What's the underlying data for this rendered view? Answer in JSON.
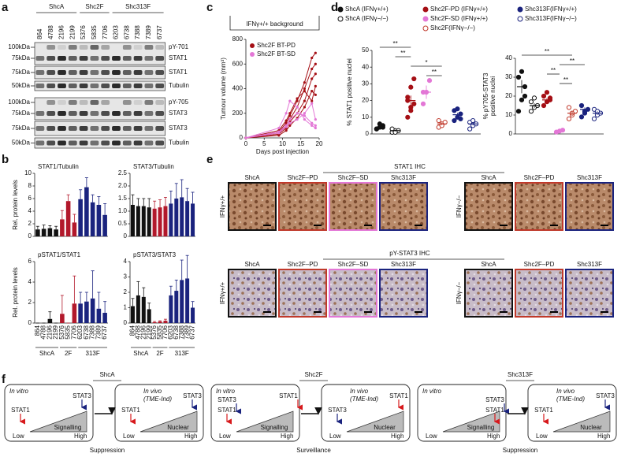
{
  "panel_labels": [
    "a",
    "b",
    "c",
    "d",
    "e",
    "f"
  ],
  "blot": {
    "groups": [
      "ShcA",
      "Shc2F",
      "Shc313F"
    ],
    "lanes": [
      "864",
      "4788",
      "2196",
      "2199",
      "5376",
      "5835",
      "7706",
      "6203",
      "6738",
      "7388",
      "7389",
      "6737"
    ],
    "rows": [
      {
        "markers": [
          "100kDa",
          "75kDa"
        ],
        "labels": [
          "pY-701",
          "STAT1"
        ]
      },
      {
        "markers": [
          "75kDa"
        ],
        "labels": [
          "STAT1"
        ]
      },
      {
        "markers": [
          "50kDa"
        ],
        "labels": [
          "Tubulin"
        ]
      },
      {
        "markers": [
          "100kDa",
          "75kDa"
        ],
        "labels": [
          "pY-705",
          "STAT3"
        ]
      },
      {
        "markers": [
          "75kDa"
        ],
        "labels": [
          "STAT3"
        ]
      },
      {
        "markers": [
          "50kDa"
        ],
        "labels": [
          "Tubulin"
        ]
      }
    ]
  },
  "chart_data": [
    {
      "type": "bar",
      "title": "STAT1/Tubulin",
      "ylabel": "Rel. protein levels",
      "ylim": [
        0,
        10
      ],
      "yticks": [
        0,
        2,
        4,
        6,
        8,
        10
      ],
      "values": [
        1.1,
        1.2,
        1.3,
        1.1,
        2.7,
        5.6,
        2.2,
        5.9,
        7.8,
        5.4,
        5.0,
        3.4
      ],
      "errors": [
        0.5,
        0.6,
        0.4,
        0.5,
        1.4,
        1.0,
        1.3,
        1.5,
        1.5,
        1.2,
        1.3,
        1.8
      ],
      "colors": [
        "#111111",
        "#111111",
        "#111111",
        "#111111",
        "#b2182b",
        "#b2182b",
        "#b2182b",
        "#1a237e",
        "#1a237e",
        "#1a237e",
        "#1a237e",
        "#1a237e"
      ]
    },
    {
      "type": "bar",
      "title": "STAT3/Tubulin",
      "ylim": [
        0,
        2.5
      ],
      "yticks": [
        0,
        0.5,
        {
          "value": 1,
          "label": "1.0"
        },
        1.5,
        {
          "value": 2,
          "label": "2.0"
        },
        2.5
      ],
      "values": [
        1.25,
        1.2,
        1.2,
        1.15,
        1.1,
        1.15,
        1.2,
        1.3,
        1.5,
        1.55,
        1.4,
        1.3
      ],
      "errors": [
        0.4,
        0.3,
        0.3,
        0.35,
        0.3,
        0.3,
        0.35,
        0.5,
        0.6,
        0.7,
        0.5,
        0.45
      ],
      "colors": [
        "#111111",
        "#111111",
        "#111111",
        "#111111",
        "#b2182b",
        "#b2182b",
        "#b2182b",
        "#1a237e",
        "#1a237e",
        "#1a237e",
        "#1a237e",
        "#1a237e"
      ]
    },
    {
      "type": "bar",
      "title": "pSTAT1/STAT1",
      "ylabel": "Rel. protein levels",
      "ylim": [
        0,
        6
      ],
      "yticks": [
        0,
        2,
        4,
        6
      ],
      "categories": [
        "864",
        "4788",
        "2196",
        "2199",
        "5376",
        "5835",
        "7706",
        "6203",
        "6738",
        "7388",
        "7389",
        "6737"
      ],
      "group_labels": [
        "ShcA",
        "2F",
        "313F"
      ],
      "values": [
        0,
        0,
        0.4,
        0,
        0.9,
        0,
        1.9,
        1.9,
        2.1,
        2.4,
        1.4,
        1.0
      ],
      "errors": [
        0,
        0,
        0.7,
        0,
        1.8,
        0,
        2.7,
        1.1,
        0.9,
        2.7,
        1.6,
        1.1
      ],
      "colors": [
        "#111111",
        "#111111",
        "#111111",
        "#111111",
        "#b2182b",
        "#b2182b",
        "#b2182b",
        "#1a237e",
        "#1a237e",
        "#1a237e",
        "#1a237e",
        "#1a237e"
      ]
    },
    {
      "type": "bar",
      "title": "pSTAT3/STAT3",
      "ylim": [
        0,
        4
      ],
      "yticks": [
        0,
        1,
        2,
        3,
        4
      ],
      "categories": [
        "864",
        "4788",
        "2196",
        "2199",
        "5376",
        "5835",
        "7706",
        "6203",
        "6738",
        "7388",
        "7389",
        "6737"
      ],
      "group_labels": [
        "ShcA",
        "2F",
        "313F"
      ],
      "values": [
        1.1,
        1.8,
        1.7,
        0.9,
        0.05,
        0.1,
        0.15,
        1.8,
        2.1,
        2.8,
        2.9,
        1.0
      ],
      "errors": [
        0.5,
        0.9,
        0.6,
        0.4,
        0.05,
        0.05,
        0.1,
        0.6,
        0.7,
        1.3,
        1.5,
        0.4
      ],
      "colors": [
        "#111111",
        "#111111",
        "#111111",
        "#111111",
        "#b2182b",
        "#b2182b",
        "#b2182b",
        "#1a237e",
        "#1a237e",
        "#1a237e",
        "#1a237e",
        "#1a237e"
      ]
    },
    {
      "type": "line",
      "title": "IFNγ+/+ background",
      "ylabel": "Tumour volume (mm³)",
      "xlabel": "Days post injection",
      "xlim": [
        0,
        20
      ],
      "xticks": [
        0,
        5,
        10,
        15,
        20
      ],
      "ylim": [
        0,
        800
      ],
      "yticks": [
        0,
        200,
        400,
        600,
        800
      ],
      "x": [
        0,
        9,
        11,
        12,
        14,
        16,
        18,
        19
      ],
      "series": [
        {
          "name": "Shc2F BT-PD",
          "color": "#a50f15",
          "lines": [
            [
              0,
              50,
              120,
              180,
              300,
              450,
              650,
              690
            ],
            [
              0,
              40,
              100,
              150,
              250,
              400,
              560,
              600
            ],
            [
              0,
              30,
              80,
              130,
              200,
              300,
              480,
              520
            ],
            [
              0,
              60,
              140,
              200,
              320,
              380,
              300,
              420
            ],
            [
              0,
              20,
              60,
              100,
              160,
              250,
              380,
              350
            ]
          ]
        },
        {
          "name": "Shc2F BT-SD",
          "color": "#e377d6",
          "lines": [
            [
              0,
              80,
              200,
              300,
              250,
              150,
              100,
              80
            ],
            [
              0,
              40,
              90,
              120,
              150,
              200,
              280,
              150
            ],
            [
              0,
              50,
              100,
              150,
              200,
              180,
              120,
              100
            ]
          ]
        }
      ]
    },
    {
      "type": "dot",
      "ylabel": "% STAT1 positive nuclei",
      "ylim": [
        0,
        50
      ],
      "yticks": [
        0,
        10,
        20,
        30,
        40,
        50
      ],
      "series": [
        {
          "name": "ShcA (IFNγ+/+)",
          "color": "#111111",
          "filled": true,
          "values": [
            3,
            4,
            5,
            3,
            6,
            4
          ],
          "mean": 4,
          "sem": 0.6
        },
        {
          "name": "ShcA (IFNγ−/−)",
          "color": "#111111",
          "filled": false,
          "values": [
            1,
            2,
            2,
            3,
            1
          ],
          "mean": 2,
          "sem": 0.4
        },
        {
          "name": "Shc2F-PD (IFNγ+/+)",
          "color": "#a50f15",
          "filled": true,
          "values": [
            10,
            14,
            18,
            22,
            28,
            33,
            20,
            16
          ],
          "mean": 20,
          "sem": 3
        },
        {
          "name": "Shc2F-SD (IFNγ+/+)",
          "color": "#e377d6",
          "filled": true,
          "values": [
            18,
            25,
            32,
            25
          ],
          "mean": 25,
          "sem": 4
        },
        {
          "name": "Shc2F(IFNγ−/−)",
          "color": "#c0392b",
          "filled": false,
          "values": [
            4,
            6,
            7,
            8,
            5
          ],
          "mean": 6,
          "sem": 0.8
        },
        {
          "name": "Shc313F(IFNγ+/+)",
          "color": "#1a237e",
          "filled": true,
          "values": [
            8,
            10,
            12,
            14,
            15,
            9
          ],
          "mean": 11.5,
          "sem": 1.2
        },
        {
          "name": "Shc313F(IFNγ−/−)",
          "color": "#1a237e",
          "filled": false,
          "values": [
            3,
            5,
            6,
            7,
            8
          ],
          "mean": 6,
          "sem": 0.9
        }
      ],
      "annotations": [
        {
          "text": "**",
          "groups": [
            0,
            2
          ]
        },
        {
          "text": "**",
          "groups": [
            1,
            2
          ]
        },
        {
          "text": "*",
          "groups": [
            2,
            4
          ]
        },
        {
          "text": "**",
          "groups": [
            3,
            4
          ]
        }
      ]
    },
    {
      "type": "dot",
      "ylabel": [
        "% pY705-STAT3",
        "positive nuclei"
      ],
      "ylim": [
        0,
        40
      ],
      "yticks": [
        0,
        10,
        20,
        30,
        40
      ],
      "series": [
        {
          "color": "#111111",
          "filled": true,
          "values": [
            12,
            18,
            25,
            30,
            33,
            20
          ],
          "mean": 25,
          "sem": 3.5
        },
        {
          "color": "#111111",
          "filled": false,
          "values": [
            12,
            14,
            15,
            17,
            19
          ],
          "mean": 15,
          "sem": 1.2
        },
        {
          "color": "#a50f15",
          "filled": true,
          "values": [
            15,
            17,
            18,
            20,
            22,
            19
          ],
          "mean": 18,
          "sem": 1
        },
        {
          "color": "#e377d6",
          "filled": true,
          "values": [
            1,
            1.5,
            2
          ],
          "mean": 1.5,
          "sem": 0.3
        },
        {
          "color": "#c0392b",
          "filled": false,
          "values": [
            8,
            10,
            12,
            14,
            11
          ],
          "mean": 11,
          "sem": 1
        },
        {
          "color": "#1a237e",
          "filled": true,
          "values": [
            9,
            11,
            13,
            15,
            12
          ],
          "mean": 13,
          "sem": 1
        },
        {
          "color": "#1a237e",
          "filled": false,
          "values": [
            8,
            10,
            11,
            13,
            12
          ],
          "mean": 11,
          "sem": 1
        }
      ],
      "annotations": [
        {
          "text": "**",
          "groups": [
            0,
            4
          ]
        },
        {
          "text": "**",
          "groups": [
            3,
            5
          ]
        },
        {
          "text": "**",
          "groups": [
            2,
            3
          ]
        },
        {
          "text": "**",
          "groups": [
            3,
            4
          ]
        }
      ]
    }
  ],
  "ihc": {
    "rows": [
      {
        "title": "STAT1 IHC",
        "side": [
          "IFNγ+/+",
          "IFNγ−/−"
        ],
        "left": [
          "ShcA",
          "Shc2F–PD",
          "Shc2F–SD",
          "Shc313F"
        ],
        "left_frames": [
          "#111111",
          "#c0392b",
          "#e377d6",
          "#1a237e"
        ],
        "right": [
          "ShcA",
          "Shc2F–PD",
          "Shc313F"
        ],
        "right_frames": [
          "#111111",
          "#c0392b",
          "#1a237e"
        ]
      },
      {
        "title": "pY-STAT3 IHC",
        "side": [
          "IFNγ+/+",
          "IFNγ−/−"
        ],
        "left": [
          "ShcA",
          "Shc2F–PD",
          "Shc2F–SD",
          "Shc313F"
        ],
        "left_frames": [
          "#111111",
          "#c0392b",
          "#e377d6",
          "#1a237e"
        ],
        "right": [
          "ShcA",
          "Shc2F–PD",
          "Shc313F"
        ],
        "right_frames": [
          "#111111",
          "#c0392b",
          "#1a237e"
        ]
      }
    ]
  },
  "diagram": {
    "in_vitro": "In vitro",
    "in_vivo": "In vivo",
    "tme": "(TME-Ind)",
    "low": "Low",
    "high": "High",
    "signalling": "Signalling",
    "nuclear": "Nuclear",
    "panels": [
      {
        "title": "ShcA",
        "outcome": "Suppression",
        "outcome_color": "#d7191c",
        "in_vitro_markers": [
          {
            "label": "STAT1",
            "color": "#d7191c"
          },
          {
            "label": "STAT3",
            "color": "#1a237e"
          }
        ],
        "in_vivo_markers": [
          {
            "label": "STAT1",
            "color": "#d7191c"
          },
          {
            "label": "STAT3",
            "color": "#1a237e"
          }
        ]
      },
      {
        "title": "Shc2F",
        "outcome": "Surveillance",
        "outcome_color": "#3b7d23",
        "in_vitro_markers": [
          {
            "label": "STAT3",
            "color": "#1a237e"
          },
          {
            "label": "STAT1",
            "color": "#d7191c"
          },
          {
            "label": "STAT1",
            "color": "#d7191c"
          }
        ],
        "in_vivo_markers": [
          {
            "label": "STAT3",
            "color": "#1a237e"
          },
          {
            "label": "STAT1",
            "color": "#d7191c"
          }
        ]
      },
      {
        "title": "Shc313F",
        "outcome": "Suppression",
        "outcome_color": "#d7191c",
        "in_vitro_markers": [
          {
            "label": "STAT3",
            "color": "#1a237e"
          },
          {
            "label": "STAT1",
            "color": "#d7191c"
          }
        ],
        "in_vivo_markers": [
          {
            "label": "STAT1",
            "color": "#d7191c"
          },
          {
            "label": "STAT3",
            "color": "#1a237e"
          }
        ]
      }
    ]
  }
}
